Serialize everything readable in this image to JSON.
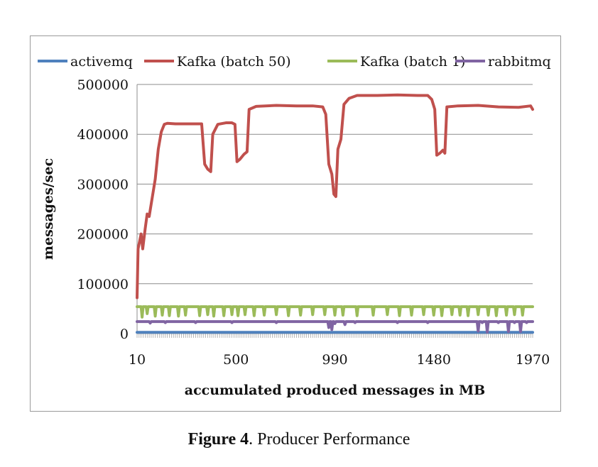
{
  "chart_data": {
    "type": "line",
    "title": "",
    "xlabel": "accumulated produced messages in MB",
    "ylabel": "messages/sec",
    "x_range": [
      10,
      1970
    ],
    "ylim": [
      0,
      500000
    ],
    "y_ticks": [
      0,
      100000,
      200000,
      300000,
      400000,
      500000
    ],
    "x_tick_labels": [
      "10",
      "500",
      "990",
      "1480",
      "1970"
    ],
    "legend_position": "top",
    "grid": "horizontal",
    "series": [
      {
        "name": "activemq",
        "color": "#4f81bd",
        "points": [
          [
            10,
            2500
          ],
          [
            1970,
            2500
          ]
        ]
      },
      {
        "name": "Kafka (batch 50)",
        "color": "#c0504d",
        "points": [
          [
            10,
            72000
          ],
          [
            15,
            170000
          ],
          [
            30,
            200000
          ],
          [
            38,
            170000
          ],
          [
            50,
            210000
          ],
          [
            60,
            240000
          ],
          [
            70,
            235000
          ],
          [
            80,
            260000
          ],
          [
            90,
            285000
          ],
          [
            100,
            310000
          ],
          [
            115,
            370000
          ],
          [
            130,
            405000
          ],
          [
            145,
            420000
          ],
          [
            160,
            422000
          ],
          [
            200,
            421000
          ],
          [
            250,
            421000
          ],
          [
            330,
            421000
          ],
          [
            345,
            340000
          ],
          [
            360,
            330000
          ],
          [
            375,
            325000
          ],
          [
            385,
            400000
          ],
          [
            410,
            420000
          ],
          [
            450,
            423000
          ],
          [
            480,
            423000
          ],
          [
            495,
            420000
          ],
          [
            505,
            345000
          ],
          [
            520,
            350000
          ],
          [
            540,
            360000
          ],
          [
            555,
            365000
          ],
          [
            565,
            450000
          ],
          [
            600,
            456000
          ],
          [
            700,
            458000
          ],
          [
            800,
            457000
          ],
          [
            880,
            457000
          ],
          [
            930,
            455000
          ],
          [
            945,
            440000
          ],
          [
            960,
            340000
          ],
          [
            975,
            320000
          ],
          [
            985,
            280000
          ],
          [
            995,
            275000
          ],
          [
            1005,
            370000
          ],
          [
            1020,
            390000
          ],
          [
            1035,
            460000
          ],
          [
            1060,
            472000
          ],
          [
            1100,
            478000
          ],
          [
            1200,
            478000
          ],
          [
            1300,
            479000
          ],
          [
            1400,
            478000
          ],
          [
            1450,
            478000
          ],
          [
            1470,
            470000
          ],
          [
            1485,
            450000
          ],
          [
            1495,
            358000
          ],
          [
            1510,
            362000
          ],
          [
            1525,
            368000
          ],
          [
            1535,
            362000
          ],
          [
            1545,
            455000
          ],
          [
            1600,
            457000
          ],
          [
            1700,
            458000
          ],
          [
            1800,
            455000
          ],
          [
            1900,
            454000
          ],
          [
            1960,
            457000
          ],
          [
            1970,
            450000
          ]
        ]
      },
      {
        "name": "Kafka (batch 1)",
        "color": "#9bbb59",
        "baseline": 54000,
        "dips": [
          [
            35,
            33000
          ],
          [
            60,
            40000
          ],
          [
            100,
            35000
          ],
          [
            135,
            37000
          ],
          [
            170,
            36000
          ],
          [
            215,
            35000
          ],
          [
            250,
            37000
          ],
          [
            320,
            36000
          ],
          [
            360,
            38000
          ],
          [
            390,
            35000
          ],
          [
            440,
            36000
          ],
          [
            480,
            38000
          ],
          [
            510,
            36000
          ],
          [
            545,
            38000
          ],
          [
            590,
            36000
          ],
          [
            640,
            37000
          ],
          [
            700,
            38000
          ],
          [
            760,
            36000
          ],
          [
            820,
            37000
          ],
          [
            880,
            38000
          ],
          [
            940,
            38000
          ],
          [
            990,
            37000
          ],
          [
            1030,
            37000
          ],
          [
            1100,
            36000
          ],
          [
            1180,
            37000
          ],
          [
            1250,
            38000
          ],
          [
            1310,
            36000
          ],
          [
            1370,
            37000
          ],
          [
            1430,
            38000
          ],
          [
            1480,
            37000
          ],
          [
            1520,
            36000
          ],
          [
            1570,
            38000
          ],
          [
            1610,
            37000
          ],
          [
            1650,
            36000
          ],
          [
            1700,
            38000
          ],
          [
            1750,
            37000
          ],
          [
            1790,
            36000
          ],
          [
            1840,
            37000
          ],
          [
            1880,
            38000
          ],
          [
            1920,
            37000
          ]
        ]
      },
      {
        "name": "rabbitmq",
        "color": "#8064a2",
        "baseline": 24000,
        "dips": [
          [
            75,
            21000
          ],
          [
            150,
            22000
          ],
          [
            300,
            22000
          ],
          [
            480,
            22000
          ],
          [
            700,
            22000
          ],
          [
            960,
            12000
          ],
          [
            975,
            8000
          ],
          [
            990,
            20000
          ],
          [
            1040,
            18000
          ],
          [
            1090,
            22000
          ],
          [
            1300,
            22000
          ],
          [
            1450,
            22000
          ],
          [
            1700,
            5000
          ],
          [
            1720,
            22000
          ],
          [
            1745,
            3000
          ],
          [
            1800,
            22000
          ],
          [
            1850,
            4000
          ],
          [
            1880,
            22000
          ],
          [
            1910,
            4000
          ],
          [
            1940,
            22000
          ]
        ]
      }
    ]
  },
  "caption": {
    "label": "Figure 4",
    "text": ". Producer Performance"
  }
}
